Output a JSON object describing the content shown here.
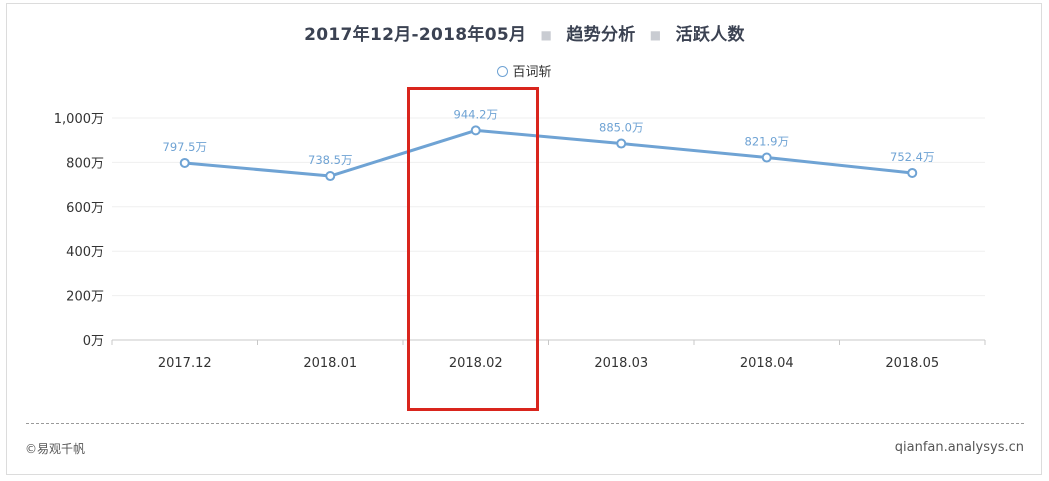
{
  "header": {
    "period": "2017年12月-2018年05月",
    "sep": "■",
    "analysis": "趋势分析",
    "metric": "活跃人数"
  },
  "footer": {
    "copyright": "©易观千帆",
    "site": "qianfan.analysys.cn"
  },
  "colors": {
    "series": "#6fa3d4",
    "highlight": "#d9251d"
  },
  "chart_data": {
    "type": "line",
    "categories": [
      "2017.12",
      "2018.01",
      "2018.02",
      "2018.03",
      "2018.04",
      "2018.05"
    ],
    "series": [
      {
        "name": "百词斩",
        "values": [
          797.5,
          738.5,
          944.2,
          885.0,
          821.9,
          752.4
        ],
        "labels": [
          "797.5万",
          "738.5万",
          "944.2万",
          "885.0万",
          "821.9万",
          "752.4万"
        ]
      }
    ],
    "yticks": [
      "0万",
      "200万",
      "400万",
      "600万",
      "800万",
      "1,000万"
    ],
    "ylim": [
      0,
      1000
    ],
    "grid": true,
    "legend": "top-center",
    "highlighted_category": "2018.02"
  }
}
